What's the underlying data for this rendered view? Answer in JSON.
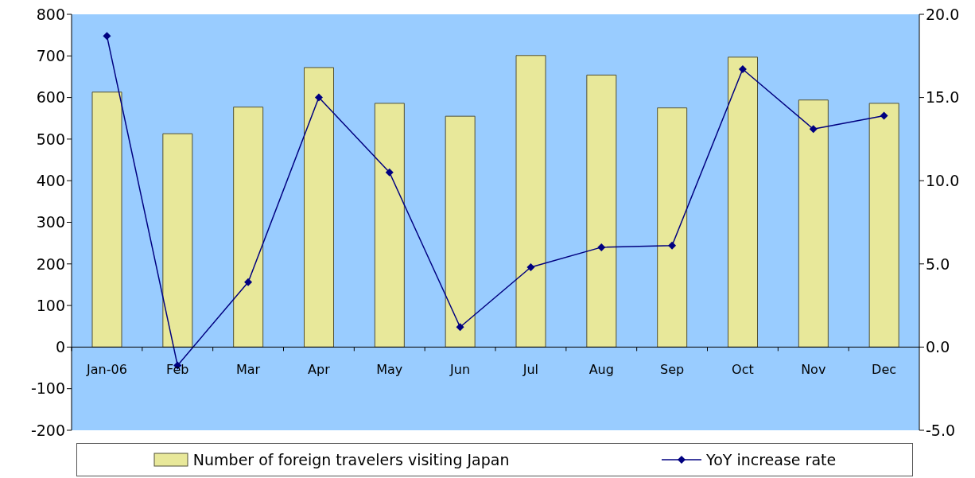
{
  "chart_data": {
    "type": "bar",
    "categories": [
      "Jan-06",
      "Feb",
      "Mar",
      "Apr",
      "May",
      "Jun",
      "Jul",
      "Aug",
      "Sep",
      "Oct",
      "Nov",
      "Dec"
    ],
    "series": [
      {
        "name": "Number of foreign travelers visiting Japan",
        "color": "#e8e89a",
        "values": [
          613,
          513,
          577,
          672,
          586,
          555,
          701,
          654,
          575,
          697,
          594,
          586
        ]
      },
      {
        "name": "YoY increase rate",
        "type": "line",
        "axis": "y2",
        "color": "#000080",
        "marker": "diamond",
        "values": [
          18.7,
          -1.1,
          3.9,
          15.0,
          10.5,
          1.2,
          4.8,
          6.0,
          6.1,
          16.7,
          13.1,
          13.9
        ]
      }
    ],
    "ylim": [
      -200,
      800
    ],
    "yticks": [
      -200,
      -100,
      0,
      100,
      200,
      300,
      400,
      500,
      600,
      700,
      800
    ],
    "y2lim": [
      -5,
      20
    ],
    "y2ticks": [
      {
        "value": -5,
        "label": "-5.0"
      },
      {
        "value": 0,
        "label": "0.0"
      },
      {
        "value": 5,
        "label": "5.0"
      },
      {
        "value": 10,
        "label": "10.0"
      },
      {
        "value": 15,
        "label": "15.0"
      },
      {
        "value": 20,
        "label": "20.0"
      }
    ],
    "legend": "bottom"
  }
}
